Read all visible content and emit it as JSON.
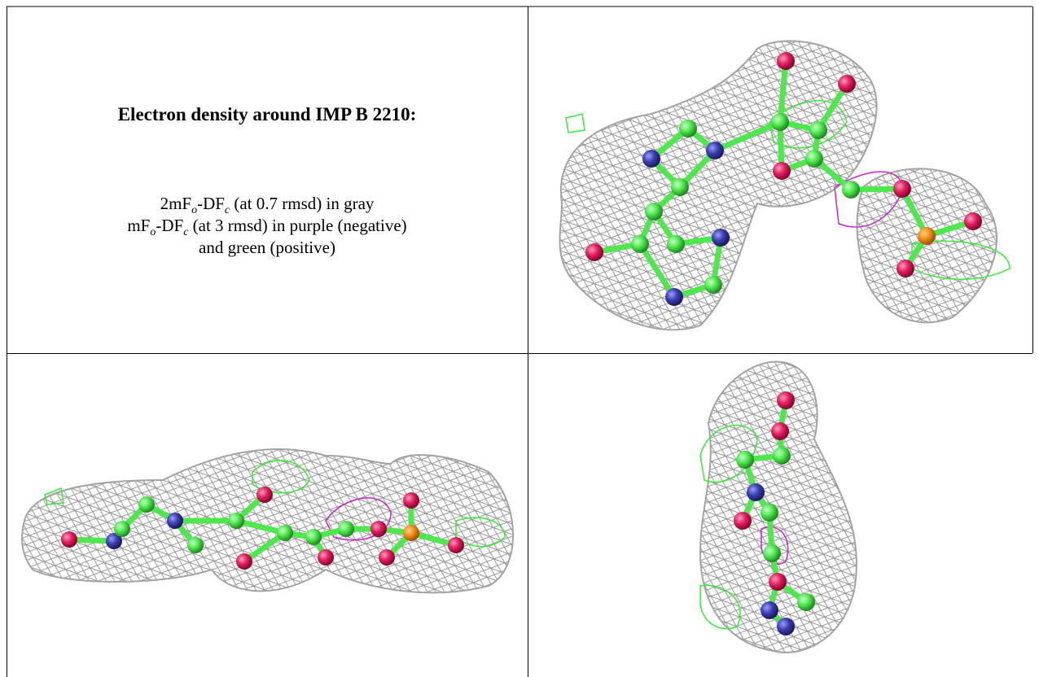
{
  "caption": {
    "title": "Electron density around IMP B 2210:",
    "lines": [
      [
        "2mF",
        "o",
        "-DF",
        "c",
        " (at 0.7 rmsd) in gray"
      ],
      [
        "mF",
        "o",
        "-DF",
        "c",
        " (at 3 rmsd) in purple (negative)"
      ],
      [
        "and green (positive)"
      ]
    ]
  }
}
